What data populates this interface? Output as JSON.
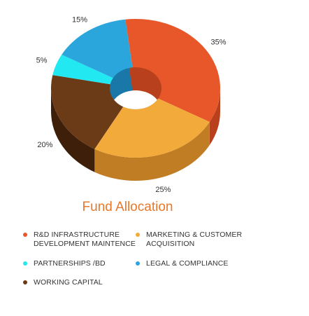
{
  "chart_data": {
    "type": "pie",
    "title": "Fund Allocation",
    "slices": [
      {
        "name": "R&D INFRASTRUCTURE\nDEVELOPMENT MAINTENCE",
        "value": 35,
        "label": "35%",
        "color": "#e8572a",
        "side_color": "#b8401c"
      },
      {
        "name": "MARKETING & CUSTOMER\nACQUISITION",
        "value": 25,
        "label": "25%",
        "color": "#f2ab3a",
        "side_color": "#c07d24"
      },
      {
        "name": "WORKING CAPITAL",
        "value": 20,
        "label": "20%",
        "color": "#6b3a17",
        "side_color": "#3d1f0a"
      },
      {
        "name": "PARTNERSHIPS /BD",
        "value": 5,
        "label": "5%",
        "color": "#22e8f2",
        "side_color": "#14a8b0"
      },
      {
        "name": "LEGAL & COMPLIANCE",
        "value": 15,
        "label": "15%",
        "color": "#2aa6dc",
        "side_color": "#1a78a8"
      }
    ],
    "legend_placement": "bottom"
  }
}
